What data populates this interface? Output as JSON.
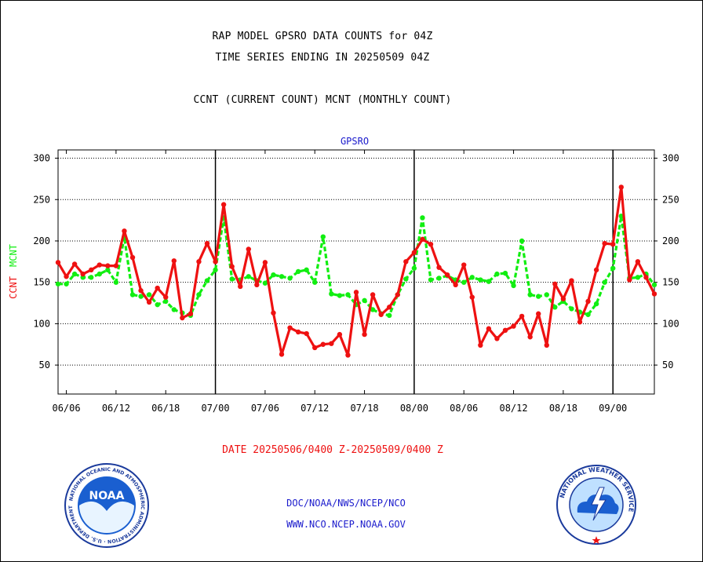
{
  "header": {
    "line1": "RAP MODEL GPSRO DATA COUNTS for 04Z",
    "line2": "TIME SERIES ENDING IN 20250509 04Z",
    "line3": "CCNT (CURRENT COUNT) MCNT (MONTHLY COUNT)"
  },
  "footer": {
    "date_range": "DATE 20250506/0400 Z-20250509/0400 Z",
    "credit1": "DOC/NOAA/NWS/NCEP/NCO",
    "credit2": "WWW.NCO.NCEP.NOAA.GOV"
  },
  "logos": {
    "left": "NOAA",
    "right": "NATIONAL WEATHER SERVICE",
    "left_ring_text": "NATIONAL OCEANIC AND ATMOSPHERIC ADMINISTRATION · U.S. DEPARTMENT OF COMMERCE"
  },
  "colors": {
    "ccnt": "#ee1111",
    "mcnt": "#11ee11",
    "title_panel": "#1a1acc"
  },
  "chart_data": {
    "type": "line",
    "panel_title": "GPSRO",
    "ylabel_parts": [
      "CCNT",
      "MCNT"
    ],
    "ylim": [
      15,
      310
    ],
    "y_ticks": [
      50,
      100,
      150,
      200,
      250,
      300
    ],
    "x_tick_labels": [
      "06/06",
      "06/12",
      "06/18",
      "07/00",
      "07/06",
      "07/12",
      "07/18",
      "08/00",
      "08/06",
      "08/12",
      "08/18",
      "09/00"
    ],
    "day_boundaries": [
      "07/00",
      "08/00",
      "09/00"
    ],
    "grid": true,
    "series": [
      {
        "name": "CCNT",
        "values": [
          174,
          157,
          172,
          160,
          165,
          171,
          170,
          170,
          212,
          180,
          140,
          126,
          143,
          132,
          176,
          107,
          112,
          175,
          197,
          175,
          244,
          169,
          145,
          190,
          147,
          174,
          113,
          63,
          95,
          90,
          88,
          71,
          75,
          76,
          87,
          62,
          138,
          87,
          135,
          111,
          120,
          135,
          175,
          186,
          202,
          196,
          168,
          159,
          147,
          171,
          132,
          74,
          94,
          82,
          92,
          97,
          109,
          84,
          112,
          74,
          148,
          130,
          152,
          102,
          127,
          165,
          197,
          196,
          265,
          153,
          175,
          156,
          136
        ]
      },
      {
        "name": "MCNT",
        "values": [
          148,
          148,
          160,
          156,
          156,
          160,
          165,
          150,
          205,
          135,
          133,
          135,
          123,
          127,
          117,
          113,
          110,
          135,
          152,
          165,
          228,
          154,
          153,
          157,
          152,
          149,
          159,
          157,
          155,
          163,
          165,
          150,
          205,
          136,
          134,
          135,
          123,
          128,
          117,
          112,
          110,
          135,
          154,
          167,
          228,
          153,
          155,
          158,
          153,
          150,
          156,
          153,
          151,
          160,
          161,
          146,
          200,
          135,
          133,
          135,
          120,
          127,
          118,
          114,
          111,
          124,
          150,
          167,
          230,
          155,
          156,
          160,
          147
        ]
      }
    ]
  }
}
